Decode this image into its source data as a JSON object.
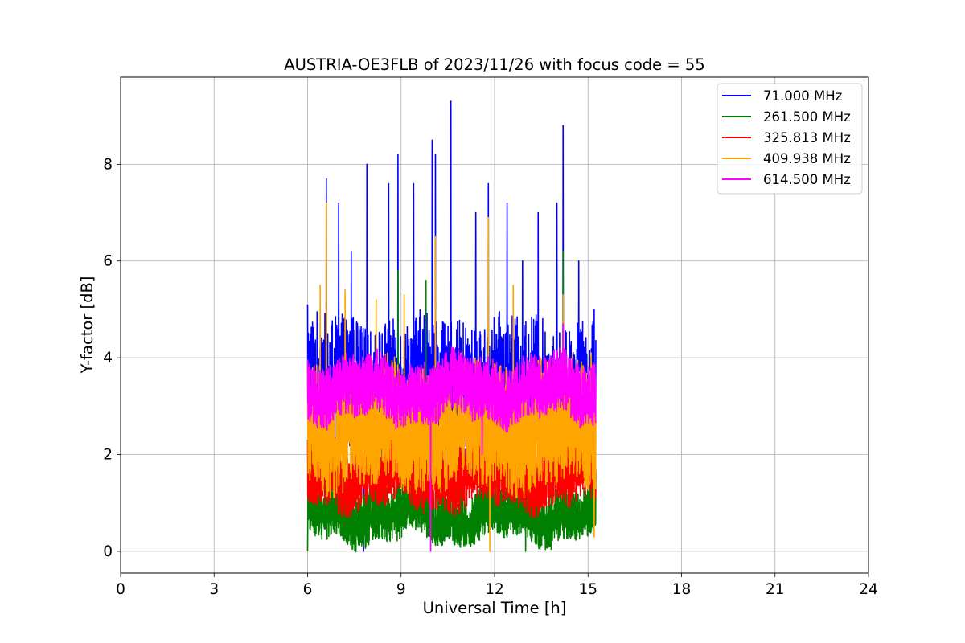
{
  "chart_data": {
    "type": "line",
    "title": "AUSTRIA-OE3FLB of 2023/11/26 with focus code = 55",
    "xlabel": "Universal Time [h]",
    "ylabel": "Y-factor [dB]",
    "xlim": [
      0,
      24
    ],
    "ylim": [
      -0.45,
      9.8
    ],
    "xticks": [
      0,
      3,
      6,
      9,
      12,
      15,
      18,
      21,
      24
    ],
    "yticks": [
      0,
      2,
      4,
      6,
      8
    ],
    "grid": true,
    "legend_position": "top-right",
    "time_range": [
      6.0,
      15.25
    ],
    "series": [
      {
        "name": " 71.000 MHz",
        "color": "#0000ff",
        "baseline": 3.0,
        "noise_low": 1.2,
        "noise_high": 1.8,
        "peaks": [
          [
            6.0,
            5.1
          ],
          [
            6.6,
            7.7
          ],
          [
            7.0,
            7.2
          ],
          [
            7.4,
            6.2
          ],
          [
            7.8,
            0.0
          ],
          [
            7.9,
            8.0
          ],
          [
            8.6,
            7.6
          ],
          [
            8.9,
            8.2
          ],
          [
            9.4,
            7.6
          ],
          [
            10.0,
            8.5
          ],
          [
            10.1,
            8.2
          ],
          [
            10.6,
            9.3
          ],
          [
            11.4,
            7.0
          ],
          [
            11.8,
            7.6
          ],
          [
            12.4,
            7.2
          ],
          [
            12.9,
            6.0
          ],
          [
            13.4,
            7.0
          ],
          [
            14.0,
            7.2
          ],
          [
            14.2,
            8.8
          ],
          [
            14.7,
            6.0
          ],
          [
            15.2,
            5.0
          ]
        ]
      },
      {
        "name": "261.500 MHz",
        "color": "#008000",
        "baseline": 0.7,
        "noise_low": 0.5,
        "noise_high": 0.7,
        "peaks": [
          [
            6.0,
            0.0
          ],
          [
            6.4,
            3.0
          ],
          [
            8.9,
            5.8
          ],
          [
            9.8,
            5.6
          ],
          [
            11.8,
            5.4
          ],
          [
            14.2,
            6.2
          ],
          [
            13.0,
            0.0
          ]
        ]
      },
      {
        "name": "325.813 MHz",
        "color": "#ff0000",
        "baseline": 1.5,
        "noise_low": 0.6,
        "noise_high": 0.9,
        "peaks": [
          [
            6.8,
            2.9
          ],
          [
            9.0,
            3.6
          ],
          [
            11.2,
            2.5
          ],
          [
            13.6,
            2.2
          ]
        ]
      },
      {
        "name": "409.938 MHz",
        "color": "#ffa500",
        "baseline": 2.4,
        "noise_low": 1.1,
        "noise_high": 1.5,
        "peaks": [
          [
            6.4,
            5.5
          ],
          [
            6.6,
            7.2
          ],
          [
            7.2,
            5.4
          ],
          [
            8.2,
            5.2
          ],
          [
            9.1,
            5.3
          ],
          [
            10.1,
            6.5
          ],
          [
            11.8,
            6.9
          ],
          [
            11.85,
            0.0
          ],
          [
            12.6,
            5.5
          ],
          [
            14.2,
            5.3
          ],
          [
            15.1,
            4.1
          ],
          [
            15.2,
            0.3
          ]
        ]
      },
      {
        "name": "614.500 MHz",
        "color": "#ff00ff",
        "baseline": 3.3,
        "noise_low": 0.6,
        "noise_high": 0.7,
        "peaks": [
          [
            9.95,
            0.0
          ],
          [
            11.6,
            2.0
          ],
          [
            14.2,
            4.7
          ]
        ]
      }
    ]
  }
}
